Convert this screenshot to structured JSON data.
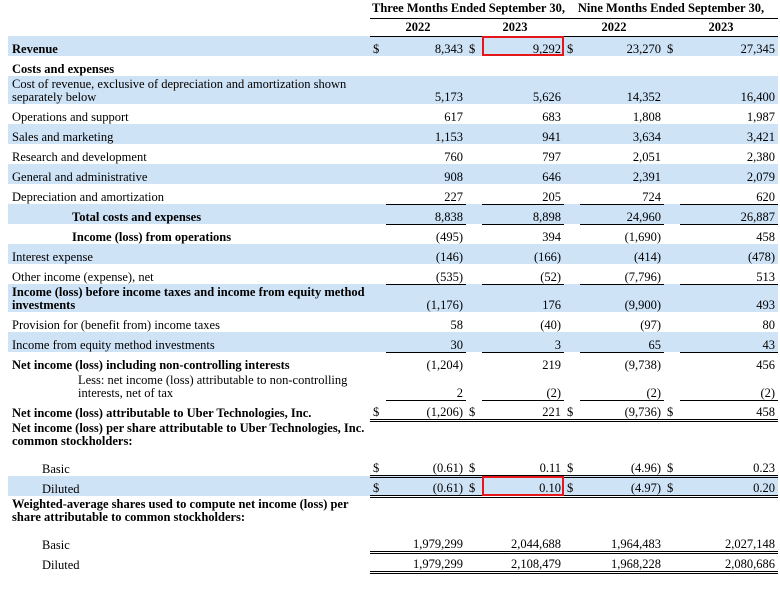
{
  "header": {
    "three_months": "Three Months Ended September 30,",
    "nine_months": "Nine Months Ended September 30,",
    "years": [
      "2022",
      "2023",
      "2022",
      "2023"
    ]
  },
  "rows": {
    "revenue": {
      "label": "Revenue",
      "vals": [
        "8,343",
        "9,292",
        "23,270",
        "27,345"
      ],
      "cur": [
        "$",
        "$",
        "$",
        "$"
      ]
    },
    "costs_header": {
      "label": "Costs and expenses"
    },
    "cost_of_revenue": {
      "label": "Cost of revenue, exclusive of depreciation and amortization shown separately below",
      "vals": [
        "5,173",
        "5,626",
        "14,352",
        "16,400"
      ]
    },
    "ops_support": {
      "label": "Operations and support",
      "vals": [
        "617",
        "683",
        "1,808",
        "1,987"
      ]
    },
    "sales_marketing": {
      "label": "Sales and marketing",
      "vals": [
        "1,153",
        "941",
        "3,634",
        "3,421"
      ]
    },
    "rnd": {
      "label": "Research and development",
      "vals": [
        "760",
        "797",
        "2,051",
        "2,380"
      ]
    },
    "gna": {
      "label": "General and administrative",
      "vals": [
        "908",
        "646",
        "2,391",
        "2,079"
      ]
    },
    "dna": {
      "label": "Depreciation and amortization",
      "vals": [
        "227",
        "205",
        "724",
        "620"
      ]
    },
    "total_costs": {
      "label": "Total costs and expenses",
      "vals": [
        "8,838",
        "8,898",
        "24,960",
        "26,887"
      ]
    },
    "income_ops": {
      "label": "Income (loss) from operations",
      "vals": [
        "(495)",
        "394",
        "(1,690)",
        "458"
      ]
    },
    "interest_expense": {
      "label": "Interest expense",
      "vals": [
        "(146)",
        "(166)",
        "(414)",
        "(478)"
      ]
    },
    "other_income": {
      "label": "Other income (expense), net",
      "vals": [
        "(535)",
        "(52)",
        "(7,796)",
        "513"
      ]
    },
    "income_before_tax": {
      "label": "Income (loss) before income taxes and income from equity method investments",
      "vals": [
        "(1,176)",
        "176",
        "(9,900)",
        "493"
      ]
    },
    "provision_tax": {
      "label": "Provision for (benefit from) income taxes",
      "vals": [
        "58",
        "(40)",
        "(97)",
        "80"
      ]
    },
    "equity_method": {
      "label": "Income from equity method investments",
      "vals": [
        "30",
        "3",
        "65",
        "43"
      ]
    },
    "net_income_incl_nci": {
      "label": "Net income (loss) including non-controlling interests",
      "vals": [
        "(1,204)",
        "219",
        "(9,738)",
        "456"
      ]
    },
    "less_nci": {
      "label": "Less: net income (loss) attributable to non-controlling interests, net of tax",
      "vals": [
        "2",
        "(2)",
        "(2)",
        "(2)"
      ]
    },
    "net_income_uber": {
      "label": "Net income (loss) attributable to Uber Technologies, Inc.",
      "vals": [
        "(1,206)",
        "221",
        "(9,736)",
        "458"
      ],
      "cur": [
        "$",
        "$",
        "$",
        "$"
      ]
    },
    "eps_header": {
      "label": "Net income (loss) per share attributable to Uber Technologies, Inc. common stockholders:"
    },
    "eps_basic": {
      "label": "Basic",
      "vals": [
        "(0.61)",
        "0.11",
        "(4.96)",
        "0.23"
      ],
      "cur": [
        "$",
        "$",
        "$",
        "$"
      ]
    },
    "eps_diluted": {
      "label": "Diluted",
      "vals": [
        "(0.61)",
        "0.10",
        "(4.97)",
        "0.20"
      ],
      "cur": [
        "$",
        "$",
        "$",
        "$"
      ]
    },
    "shares_header": {
      "label": "Weighted-average shares used to compute net income (loss) per share attributable to common stockholders:"
    },
    "shares_basic": {
      "label": "Basic",
      "vals": [
        "1,979,299",
        "2,044,688",
        "1,964,483",
        "2,027,148"
      ]
    },
    "shares_diluted": {
      "label": "Diluted",
      "vals": [
        "1,979,299",
        "2,108,479",
        "1,968,228",
        "2,080,686"
      ]
    }
  },
  "highlight_color": "#e5171b",
  "shade_color": "#cfe3f7"
}
